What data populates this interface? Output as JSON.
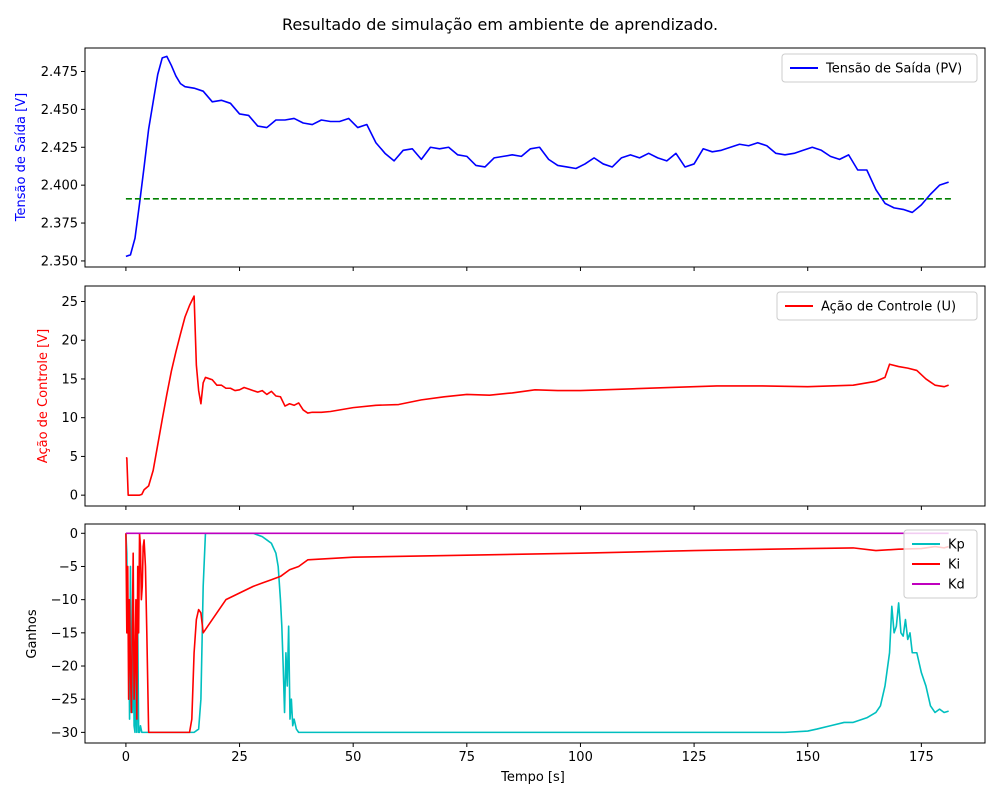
{
  "figure": {
    "title": "Resultado de simulação em ambiente de aprendizado.",
    "xlabel": "Tempo [s]"
  },
  "chart_data": [
    {
      "type": "line",
      "ylabel": "Tensão de Saída [V]",
      "ylabel_color": "#0000ff",
      "xlim": [
        -9,
        189
      ],
      "ylim": [
        2.346,
        2.4905
      ],
      "x_ticks": [
        0,
        25,
        50,
        75,
        100,
        125,
        150,
        175
      ],
      "y_ticks": [
        2.35,
        2.375,
        2.4,
        2.425,
        2.45,
        2.475
      ],
      "y_tick_labels": [
        "2.350",
        "2.375",
        "2.400",
        "2.425",
        "2.450",
        "2.475"
      ],
      "show_x_tick_labels": false,
      "legend": "top-right",
      "series": [
        {
          "name": "Tensão de Saída (PV)",
          "color": "#0000ff",
          "dash": "solid",
          "x": [
            0,
            1,
            2,
            3,
            4,
            5,
            6,
            7,
            8,
            9,
            10,
            11,
            12,
            13,
            15,
            17,
            19,
            21,
            23,
            25,
            27,
            29,
            31,
            33,
            35,
            37,
            39,
            41,
            43,
            45,
            47,
            49,
            51,
            53,
            55,
            57,
            59,
            61,
            63,
            65,
            67,
            69,
            71,
            73,
            75,
            77,
            79,
            81,
            83,
            85,
            87,
            89,
            91,
            93,
            95,
            97,
            99,
            101,
            103,
            105,
            107,
            109,
            111,
            113,
            115,
            117,
            119,
            121,
            123,
            125,
            127,
            129,
            131,
            133,
            135,
            137,
            139,
            141,
            143,
            145,
            147,
            149,
            151,
            153,
            155,
            157,
            159,
            161,
            163,
            165,
            167,
            169,
            171,
            173,
            175,
            177,
            179,
            181
          ],
          "y": [
            2.353,
            2.354,
            2.365,
            2.388,
            2.412,
            2.437,
            2.455,
            2.473,
            2.484,
            2.485,
            2.479,
            2.472,
            2.467,
            2.465,
            2.464,
            2.462,
            2.455,
            2.456,
            2.454,
            2.447,
            2.446,
            2.439,
            2.438,
            2.443,
            2.443,
            2.444,
            2.441,
            2.44,
            2.443,
            2.442,
            2.442,
            2.444,
            2.438,
            2.44,
            2.428,
            2.421,
            2.416,
            2.423,
            2.424,
            2.417,
            2.425,
            2.424,
            2.425,
            2.42,
            2.419,
            2.413,
            2.412,
            2.418,
            2.419,
            2.42,
            2.419,
            2.424,
            2.425,
            2.417,
            2.413,
            2.412,
            2.411,
            2.414,
            2.418,
            2.414,
            2.412,
            2.418,
            2.42,
            2.418,
            2.421,
            2.418,
            2.416,
            2.421,
            2.412,
            2.414,
            2.424,
            2.422,
            2.423,
            2.425,
            2.427,
            2.426,
            2.428,
            2.426,
            2.421,
            2.42,
            2.421,
            2.423,
            2.425,
            2.423,
            2.419,
            2.417,
            2.42,
            2.41,
            2.41,
            2.397,
            2.388,
            2.385,
            2.384,
            2.382,
            2.387,
            2.394,
            2.4,
            2.402
          ]
        },
        {
          "name": "",
          "color": "#008000",
          "dash": "dashed",
          "x": [
            0,
            182
          ],
          "y": [
            2.391,
            2.391
          ]
        }
      ]
    },
    {
      "type": "line",
      "ylabel": "Ação de Controle [V]",
      "ylabel_color": "#ff0000",
      "xlim": [
        -9,
        189
      ],
      "ylim": [
        -1.4,
        27.0
      ],
      "x_ticks": [
        0,
        25,
        50,
        75,
        100,
        125,
        150,
        175
      ],
      "y_ticks": [
        0,
        5,
        10,
        15,
        20,
        25
      ],
      "y_tick_labels": [
        "0",
        "5",
        "10",
        "15",
        "20",
        "25"
      ],
      "show_x_tick_labels": false,
      "legend": "top-right",
      "series": [
        {
          "name": "Ação de Controle (U)",
          "color": "#ff0000",
          "dash": "solid",
          "x": [
            0,
            0.2,
            0.5,
            1,
            2,
            3,
            3.5,
            4,
            5,
            6,
            7,
            8,
            9,
            10,
            11,
            12,
            13,
            14,
            15,
            15.5,
            16,
            16.5,
            17,
            17.5,
            18,
            19,
            20,
            21,
            22,
            23,
            24,
            25,
            26,
            27,
            28,
            29,
            30,
            31,
            32,
            33,
            34,
            35,
            36,
            37,
            38,
            39,
            40,
            41,
            43,
            45,
            50,
            55,
            60,
            65,
            70,
            75,
            80,
            85,
            90,
            95,
            100,
            110,
            120,
            130,
            140,
            150,
            160,
            165,
            167,
            168,
            170,
            172,
            174,
            176,
            177,
            178,
            180,
            181
          ],
          "y": [
            4.8,
            4.8,
            0,
            0,
            0,
            0,
            0.1,
            0.7,
            1.2,
            3.2,
            6.5,
            9.8,
            13,
            16,
            18.5,
            20.8,
            23,
            24.5,
            25.7,
            16.8,
            13.5,
            11.8,
            14.5,
            15.2,
            15.1,
            14.9,
            14.2,
            14.2,
            13.8,
            13.8,
            13.5,
            13.6,
            13.9,
            13.7,
            13.5,
            13.3,
            13.5,
            13.0,
            13.4,
            12.8,
            12.7,
            11.5,
            11.8,
            11.6,
            11.9,
            11.0,
            10.6,
            10.7,
            10.7,
            10.8,
            11.3,
            11.6,
            11.7,
            12.3,
            12.7,
            13.0,
            12.9,
            13.2,
            13.6,
            13.5,
            13.5,
            13.7,
            13.9,
            14.1,
            14.1,
            14.0,
            14.2,
            14.7,
            15.2,
            16.9,
            16.6,
            16.4,
            16.1,
            15.0,
            14.6,
            14.2,
            14.0,
            14.2
          ]
        }
      ]
    },
    {
      "type": "line",
      "ylabel": "Ganhos",
      "ylabel_color": "#000000",
      "xlim": [
        -9,
        189
      ],
      "ylim": [
        -31.6,
        1.4
      ],
      "x_ticks": [
        0,
        25,
        50,
        75,
        100,
        125,
        150,
        175
      ],
      "x_tick_labels": [
        "0",
        "25",
        "50",
        "75",
        "100",
        "125",
        "150",
        "175"
      ],
      "y_ticks": [
        0,
        -5,
        -10,
        -15,
        -20,
        -25,
        -30
      ],
      "y_tick_labels": [
        "0",
        "−5",
        "−10",
        "−15",
        "−20",
        "−25",
        "−30"
      ],
      "show_x_tick_labels": true,
      "legend": "top-right",
      "series": [
        {
          "name": "Kp",
          "color": "#00bfbf",
          "dash": "solid",
          "x": [
            0,
            0.2,
            0.4,
            0.6,
            0.8,
            1.0,
            1.2,
            1.4,
            1.6,
            1.8,
            2.0,
            2.2,
            2.4,
            2.6,
            2.8,
            3.0,
            3.2,
            3.5,
            5,
            8,
            12,
            15,
            16,
            16.5,
            17,
            17.5,
            18,
            20,
            25,
            28,
            30,
            31,
            32,
            33,
            33.5,
            34,
            34.3,
            34.6,
            34.9,
            35.2,
            35.5,
            35.8,
            36.1,
            36.4,
            36.7,
            37.0,
            37.5,
            38,
            39,
            40,
            50,
            100,
            130,
            145,
            150,
            152,
            155,
            158,
            160,
            163,
            165,
            166,
            167,
            168,
            168.5,
            169,
            169.5,
            170,
            170.5,
            171,
            171.5,
            172,
            172.5,
            173,
            174,
            175,
            176,
            177,
            178,
            179,
            180,
            181
          ],
          "y": [
            0,
            -3,
            -15,
            -10,
            -28,
            -5,
            -22,
            -27,
            -12,
            -29,
            -30,
            -20,
            -30,
            -14,
            -30,
            -30,
            -29,
            -30,
            -30,
            -30,
            -30,
            -30,
            -29.5,
            -25,
            -8,
            0,
            0,
            0,
            0,
            0,
            -0.5,
            -1,
            -1.5,
            -3,
            -5,
            -10,
            -14,
            -20,
            -27,
            -18,
            -23,
            -14,
            -28,
            -25,
            -29,
            -28,
            -29.5,
            -30,
            -30,
            -30,
            -30,
            -30,
            -30,
            -30,
            -29.8,
            -29.5,
            -29,
            -28.5,
            -28.5,
            -27.8,
            -27,
            -26,
            -23,
            -18,
            -11,
            -15,
            -14,
            -10.5,
            -15,
            -15.5,
            -13,
            -16,
            -15,
            -18,
            -18,
            -21,
            -23,
            -26,
            -27,
            -26.5,
            -27,
            -26.8
          ]
        },
        {
          "name": "Ki",
          "color": "#ff0000",
          "dash": "solid",
          "x": [
            0,
            0.2,
            0.4,
            0.6,
            0.8,
            1.0,
            1.2,
            1.4,
            1.6,
            1.8,
            2.0,
            2.2,
            2.4,
            2.6,
            2.8,
            3.0,
            3.2,
            3.4,
            3.6,
            3.8,
            4.0,
            4.3,
            4.6,
            5,
            6,
            8,
            12,
            14,
            14.5,
            15,
            15.5,
            16,
            16.5,
            17,
            17.5,
            18,
            19,
            20,
            22,
            25,
            28,
            30,
            32,
            34,
            36,
            38,
            40,
            50,
            75,
            100,
            125,
            150,
            160,
            165,
            170,
            175,
            178,
            180,
            181
          ],
          "y": [
            0,
            -15,
            -5,
            -25,
            -10,
            -20,
            -27,
            -15,
            -3,
            -25,
            -20,
            -10,
            -28,
            -5,
            -15,
            0,
            -2,
            -10,
            -8,
            -2,
            -1,
            -5,
            -15,
            -30,
            -30,
            -30,
            -30,
            -30,
            -28,
            -18,
            -13,
            -11.5,
            -12,
            -15,
            -14.5,
            -14,
            -13,
            -12,
            -10,
            -9,
            -8,
            -7.5,
            -7,
            -6.5,
            -5.5,
            -5,
            -4,
            -3.6,
            -3.3,
            -3.0,
            -2.6,
            -2.3,
            -2.2,
            -2.6,
            -2.4,
            -2.3,
            -2.0,
            -2.2,
            -2.0
          ]
        },
        {
          "name": "Kd",
          "color": "#bf00bf",
          "dash": "solid",
          "x": [
            0,
            181
          ],
          "y": [
            0,
            0
          ]
        }
      ]
    }
  ]
}
